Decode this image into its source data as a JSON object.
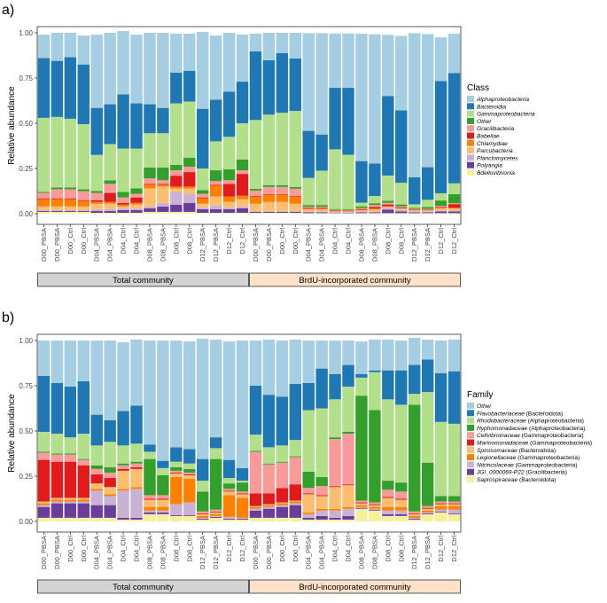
{
  "samples": [
    "D00_PBSA",
    "D00_PBSA",
    "D00_Ctrl",
    "D00_Ctrl",
    "D04_PBSA",
    "D04_PBSA",
    "D04_Ctrl",
    "D04_Ctrl",
    "D08_PBSA",
    "D08_PBSA",
    "D08_Ctrl",
    "D08_Ctrl",
    "D12_PBSA",
    "D12_PBSA",
    "D12_Ctrl",
    "D12_Ctrl",
    "D00_PBSA",
    "D00_PBSA",
    "D00_Ctrl",
    "D00_Ctrl",
    "D04_PBSA",
    "D04_PBSA",
    "D04_Ctrl",
    "D04_Ctrl",
    "D08_PBSA",
    "D08_PBSA",
    "D08_Ctrl",
    "D08_Ctrl",
    "D12_PBSA",
    "D12_PBSA",
    "D12_Ctrl",
    "D12_Ctrl"
  ],
  "groups": [
    {
      "label": "Total community",
      "color": "#d3d3d3"
    },
    {
      "label": "BrdU-incorporated community",
      "color": "#fde2c9"
    }
  ],
  "chart_data": [
    {
      "type": "bar",
      "stacked": true,
      "panel_label": "a)",
      "ylabel": "Relative abundance",
      "ylim": [
        0,
        1
      ],
      "yticks": [
        "0.00",
        "0.25",
        "0.50",
        "0.75",
        "1.00"
      ],
      "legend_title": "Class",
      "legend_position": "right",
      "series": [
        {
          "name": "Bdellovibrionia",
          "color": "#f6f09b",
          "values": [
            0.01,
            0.01,
            0.01,
            0.01,
            0.005,
            0.005,
            0.005,
            0.005,
            0.01,
            0.01,
            0.01,
            0.01,
            0.005,
            0.005,
            0.005,
            0.005,
            0.005,
            0.005,
            0.005,
            0.005,
            0.003,
            0.003,
            0.003,
            0.003,
            0.003,
            0.003,
            0.003,
            0.003,
            0.003,
            0.003,
            0.003,
            0.003
          ]
        },
        {
          "name": "Polyangia",
          "color": "#6a3d9a",
          "values": [
            0.005,
            0.005,
            0.005,
            0.005,
            0.01,
            0.01,
            0.015,
            0.015,
            0.02,
            0.03,
            0.04,
            0.05,
            0.02,
            0.02,
            0.02,
            0.025,
            0.005,
            0.005,
            0.005,
            0.005,
            0.005,
            0.005,
            0.003,
            0.003,
            0.005,
            0.005,
            0.02,
            0.01,
            0.005,
            0.005,
            0.01,
            0.01
          ]
        },
        {
          "name": "Planctomycetes",
          "color": "#cab2d6",
          "values": [
            0.005,
            0.005,
            0.005,
            0.005,
            0.01,
            0.01,
            0.01,
            0.01,
            0.01,
            0.02,
            0.07,
            0.05,
            0.01,
            0.02,
            0.01,
            0.01,
            0.005,
            0.005,
            0.005,
            0.005,
            0.005,
            0.005,
            0.003,
            0.003,
            0.005,
            0.005,
            0.01,
            0.01,
            0.005,
            0.005,
            0.005,
            0.005
          ]
        },
        {
          "name": "Parcubacteria",
          "color": "#fdbf6f",
          "values": [
            0.02,
            0.02,
            0.02,
            0.02,
            0.03,
            0.03,
            0.01,
            0.02,
            0.1,
            0.09,
            0.02,
            0.03,
            0.02,
            0.05,
            0.03,
            0.04,
            0.04,
            0.05,
            0.05,
            0.04,
            0.01,
            0.01,
            0.003,
            0.003,
            0.005,
            0.01,
            0.005,
            0.005,
            0.005,
            0.005,
            0.01,
            0.01
          ]
        },
        {
          "name": "Chlamydiae",
          "color": "#ff7f00",
          "values": [
            0.04,
            0.04,
            0.04,
            0.03,
            0.01,
            0.01,
            0.01,
            0.01,
            0.02,
            0.01,
            0.01,
            0.01,
            0.03,
            0.06,
            0.03,
            0.02,
            0.04,
            0.04,
            0.04,
            0.04,
            0.005,
            0.005,
            0.003,
            0.003,
            0.003,
            0.005,
            0.003,
            0.003,
            0.003,
            0.003,
            0.005,
            0.005
          ]
        },
        {
          "name": "Babeliae",
          "color": "#e31a1c",
          "values": [
            0.005,
            0.005,
            0.005,
            0.005,
            0.01,
            0.05,
            0.01,
            0.03,
            0.005,
            0.005,
            0.06,
            0.08,
            0.005,
            0.005,
            0.07,
            0.12,
            0.003,
            0.003,
            0.003,
            0.003,
            0.005,
            0.005,
            0.003,
            0.003,
            0.005,
            0.01,
            0.01,
            0.005,
            0.003,
            0.003,
            0.005,
            0.02
          ]
        },
        {
          "name": "Gracilibacteria",
          "color": "#fb9a99",
          "values": [
            0.03,
            0.05,
            0.05,
            0.05,
            0.04,
            0.05,
            0.03,
            0.02,
            0.03,
            0.02,
            0.03,
            0.03,
            0.02,
            0.02,
            0.02,
            0.02,
            0.03,
            0.04,
            0.04,
            0.04,
            0.005,
            0.005,
            0.003,
            0.003,
            0.005,
            0.01,
            0.01,
            0.005,
            0.003,
            0.003,
            0.005,
            0.005
          ]
        },
        {
          "name": "Other",
          "color": "#33a02c",
          "values": [
            0.005,
            0.01,
            0.01,
            0.01,
            0.01,
            0.02,
            0.03,
            0.03,
            0.06,
            0.07,
            0.03,
            0.05,
            0.02,
            0.06,
            0.06,
            0.06,
            0.01,
            0.01,
            0.01,
            0.01,
            0.01,
            0.01,
            0.005,
            0.005,
            0.01,
            0.01,
            0.01,
            0.01,
            0.005,
            0.01,
            0.03,
            0.05
          ]
        },
        {
          "name": "Gammaproteobacteria",
          "color": "#b2df8a",
          "values": [
            0.41,
            0.39,
            0.38,
            0.36,
            0.2,
            0.2,
            0.24,
            0.22,
            0.19,
            0.19,
            0.34,
            0.31,
            0.12,
            0.16,
            0.18,
            0.2,
            0.38,
            0.39,
            0.4,
            0.42,
            0.15,
            0.19,
            0.33,
            0.3,
            0.02,
            0.04,
            0.14,
            0.12,
            0.02,
            0.04,
            0.04,
            0.06
          ]
        },
        {
          "name": "Bacteroidia",
          "color": "#1f78b4",
          "values": [
            0.33,
            0.31,
            0.34,
            0.33,
            0.26,
            0.22,
            0.3,
            0.25,
            0.16,
            0.14,
            0.17,
            0.17,
            0.33,
            0.23,
            0.25,
            0.23,
            0.38,
            0.3,
            0.33,
            0.29,
            0.26,
            0.2,
            0.34,
            0.37,
            0.23,
            0.18,
            0.44,
            0.4,
            0.15,
            0.18,
            0.62,
            0.61
          ]
        },
        {
          "name": "Alphaproteobacteria",
          "color": "#a6cee3",
          "values": [
            0.13,
            0.155,
            0.135,
            0.16,
            0.405,
            0.395,
            0.35,
            0.38,
            0.395,
            0.415,
            0.215,
            0.205,
            0.425,
            0.355,
            0.325,
            0.26,
            0.097,
            0.152,
            0.112,
            0.142,
            0.54,
            0.56,
            0.3,
            0.3,
            0.704,
            0.714,
            0.338,
            0.412,
            0.796,
            0.736,
            0.242,
            0.217
          ]
        }
      ],
      "legend": [
        "Alphaproteobacteria",
        "Bacteroidia",
        "Gammaproteobacteria",
        "Other",
        "Gracilibacteria",
        "Babeliae",
        "Chlamydiae",
        "Parcubacteria",
        "Planctomycetes",
        "Polyangia",
        "Bdellovibrionia"
      ]
    },
    {
      "type": "bar",
      "stacked": true,
      "panel_label": "b)",
      "ylabel": "Relative abundance",
      "ylim": [
        0,
        1
      ],
      "yticks": [
        "0.00",
        "0.25",
        "0.50",
        "0.75",
        "1.00"
      ],
      "legend_title": "Family",
      "legend_position": "right",
      "series": [
        {
          "name": "Saprospiraceae",
          "suffix": "(Bacteroidota)",
          "color": "#f6f09b",
          "values": [
            0.02,
            0.02,
            0.02,
            0.02,
            0.02,
            0.02,
            0.01,
            0.01,
            0.04,
            0.04,
            0.03,
            0.03,
            0.01,
            0.02,
            0.01,
            0.01,
            0.02,
            0.02,
            0.02,
            0.02,
            0.01,
            0.01,
            0.01,
            0.01,
            0.07,
            0.06,
            0.03,
            0.03,
            0.01,
            0.04,
            0.05,
            0.04
          ]
        },
        {
          "name": "JGI_0000069-P22",
          "suffix": "(Gracilibacteria)",
          "color": "#6a3d9a",
          "values": [
            0.06,
            0.08,
            0.08,
            0.08,
            0.07,
            0.07,
            0.01,
            0.01,
            0.01,
            0.01,
            0.005,
            0.005,
            0.005,
            0.005,
            0.005,
            0.005,
            0.04,
            0.05,
            0.06,
            0.07,
            0.01,
            0.02,
            0.01,
            0.02,
            0.005,
            0.005,
            0.01,
            0.01,
            0.005,
            0.005,
            0.005,
            0.005
          ]
        },
        {
          "name": "Nitrincolaceae",
          "suffix": "(Gammaproteobacteria)",
          "color": "#cab2d6",
          "values": [
            0.01,
            0.01,
            0.01,
            0.01,
            0.08,
            0.05,
            0.15,
            0.16,
            0.01,
            0.01,
            0.06,
            0.07,
            0.005,
            0.005,
            0.01,
            0.005,
            0.01,
            0.01,
            0.01,
            0.01,
            0.02,
            0.03,
            0.04,
            0.04,
            0.005,
            0.005,
            0.02,
            0.02,
            0.005,
            0.005,
            0.01,
            0.02
          ]
        },
        {
          "name": "Legionellaceae",
          "suffix": "(Gammaproteobacteria)",
          "color": "#ff7f00",
          "values": [
            0.01,
            0.01,
            0.01,
            0.01,
            0.01,
            0.01,
            0.01,
            0.01,
            0.02,
            0.02,
            0.15,
            0.13,
            0.01,
            0.01,
            0.12,
            0.11,
            0.01,
            0.01,
            0.01,
            0.01,
            0.01,
            0.01,
            0.01,
            0.01,
            0.01,
            0.01,
            0.02,
            0.02,
            0.01,
            0.01,
            0.02,
            0.02
          ]
        },
        {
          "name": "Spirosomaceae",
          "suffix": "(Bacteroidota)",
          "color": "#fdbf6f",
          "values": [
            0.01,
            0.01,
            0.01,
            0.01,
            0.03,
            0.04,
            0.1,
            0.1,
            0.04,
            0.04,
            0.02,
            0.02,
            0.01,
            0.01,
            0.02,
            0.02,
            0.005,
            0.005,
            0.005,
            0.005,
            0.1,
            0.07,
            0.12,
            0.12,
            0.01,
            0.01,
            0.05,
            0.04,
            0.01,
            0.01,
            0.01,
            0.01
          ]
        },
        {
          "name": "Marinomonadaceae",
          "suffix": "(Gammaproteobacteria)",
          "color": "#e31a1c",
          "values": [
            0.23,
            0.2,
            0.2,
            0.18,
            0.05,
            0.05,
            0.01,
            0.01,
            0.005,
            0.005,
            0.005,
            0.005,
            0.005,
            0.005,
            0.005,
            0.005,
            0.07,
            0.06,
            0.08,
            0.09,
            0.005,
            0.005,
            0.005,
            0.005,
            0.005,
            0.005,
            0.005,
            0.005,
            0.005,
            0.005,
            0.005,
            0.005
          ]
        },
        {
          "name": "Cellvibrionaceae",
          "suffix": "(Gammaproteobacteria)",
          "color": "#fb9a99",
          "values": [
            0.04,
            0.04,
            0.04,
            0.03,
            0.03,
            0.03,
            0.02,
            0.02,
            0.02,
            0.02,
            0.01,
            0.01,
            0.01,
            0.01,
            0.01,
            0.01,
            0.23,
            0.16,
            0.14,
            0.15,
            0.03,
            0.05,
            0.26,
            0.28,
            0.01,
            0.01,
            0.04,
            0.04,
            0.01,
            0.01,
            0.01,
            0.01
          ]
        },
        {
          "name": "Hyphomonadaceae",
          "suffix": "(Alphaproteobacteria)",
          "color": "#33a02c",
          "values": [
            0.005,
            0.005,
            0.005,
            0.005,
            0.02,
            0.03,
            0.01,
            0.01,
            0.2,
            0.11,
            0.02,
            0.02,
            0.11,
            0.28,
            0.03,
            0.05,
            0.005,
            0.005,
            0.005,
            0.005,
            0.09,
            0.05,
            0.01,
            0.01,
            0.58,
            0.51,
            0.05,
            0.05,
            0.59,
            0.24,
            0.03,
            0.03
          ]
        },
        {
          "name": "Rhodobacteraceae",
          "suffix": "(Alphaproteobacteria)",
          "color": "#b2df8a",
          "values": [
            0.11,
            0.11,
            0.09,
            0.14,
            0.11,
            0.14,
            0.1,
            0.1,
            0.04,
            0.04,
            0.03,
            0.03,
            0.06,
            0.06,
            0.03,
            0.01,
            0.09,
            0.09,
            0.09,
            0.09,
            0.34,
            0.38,
            0.21,
            0.25,
            0.1,
            0.21,
            0.45,
            0.43,
            0.06,
            0.39,
            0.41,
            0.4
          ]
        },
        {
          "name": "Flavobacteriaceae",
          "suffix": "(Bacteroidota)",
          "color": "#1f78b4",
          "values": [
            0.31,
            0.28,
            0.28,
            0.29,
            0.17,
            0.12,
            0.19,
            0.21,
            0.04,
            0.04,
            0.08,
            0.08,
            0.12,
            0.06,
            0.1,
            0.07,
            0.27,
            0.29,
            0.27,
            0.31,
            0.15,
            0.22,
            0.14,
            0.12,
            0.02,
            0.01,
            0.16,
            0.19,
            0.16,
            0.18,
            0.27,
            0.29
          ]
        },
        {
          "name": "Other",
          "suffix": "",
          "color": "#a6cee3",
          "values": [
            0.195,
            0.235,
            0.255,
            0.225,
            0.41,
            0.44,
            0.38,
            0.365,
            0.575,
            0.665,
            0.59,
            0.595,
            0.665,
            0.54,
            0.655,
            0.705,
            0.25,
            0.305,
            0.31,
            0.245,
            0.235,
            0.155,
            0.185,
            0.135,
            0.18,
            0.17,
            0.17,
            0.165,
            0.15,
            0.11,
            0.18,
            0.175
          ]
        }
      ],
      "legend": [
        "Other",
        "Flavobacteriaceae",
        "Rhodobacteraceae",
        "Hyphomonadaceae",
        "Cellvibrionaceae",
        "Marinomonadaceae",
        "Spirosomaceae",
        "Legionellaceae",
        "Nitrincolaceae",
        "JGI_0000069-P22",
        "Saprospiraceae"
      ]
    }
  ]
}
